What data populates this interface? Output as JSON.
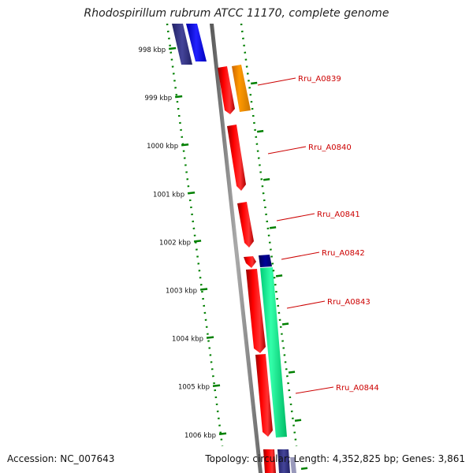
{
  "title": "Rhodospirillum rubrum ATCC 11170, complete genome",
  "footer": {
    "accession": "Accession: NC_007643",
    "summary": "Topology: circular; Length: 4,352,825 bp; Genes: 3,861"
  },
  "scale": {
    "unit": "kbp",
    "ticks": [
      "998 kbp",
      "999 kbp",
      "1000 kbp",
      "1001 kbp",
      "1002 kbp",
      "1003 kbp",
      "1004 kbp",
      "1005 kbp",
      "1006 kbp"
    ]
  },
  "genes": [
    {
      "label": "Rru_A0839",
      "color": "#ff0000",
      "partner_color": "#ff9900"
    },
    {
      "label": "Rru_A0840",
      "color": "#ff0000"
    },
    {
      "label": "Rru_A0841",
      "color": "#ff0000"
    },
    {
      "label": "Rru_A0842",
      "color": "#ff0000",
      "partner_color": "#000080"
    },
    {
      "label": "Rru_A0843",
      "color": "#ff0000",
      "partner_color": "#00ff99"
    },
    {
      "label": "Rru_A0844",
      "color": "#ff0000"
    }
  ],
  "colors": {
    "label_text": "#cc0000",
    "tick_green": "#008000",
    "backbone": "#888888",
    "upstream_blue": "#0000ff",
    "upstream_navy": "#333399"
  }
}
